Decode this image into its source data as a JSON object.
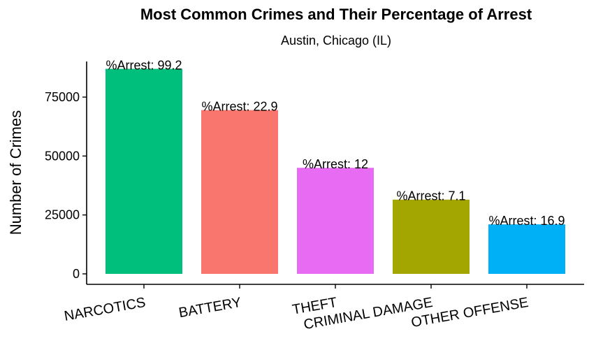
{
  "chart_data": {
    "type": "bar",
    "title": "Most Common Crimes and Their Percentage of Arrest",
    "subtitle": "Austin, Chicago (IL)",
    "xlabel": "",
    "ylabel": "Number of Crimes",
    "categories": [
      "NARCOTICS",
      "BATTERY",
      "THEFT",
      "CRIMINAL DAMAGE",
      "OTHER OFFENSE"
    ],
    "values": [
      87000,
      69500,
      45000,
      31500,
      21000
    ],
    "labels": [
      "%Arrest: 99.2",
      "%Arrest: 22.9",
      "%Arrest: 12",
      "%Arrest: 7.1",
      "%Arrest: 16.9"
    ],
    "colors": [
      "#00BF7D",
      "#F8766D",
      "#E76BF3",
      "#A3A500",
      "#00B0F6"
    ],
    "yticks": [
      0,
      25000,
      50000,
      75000
    ],
    "ylim": [
      0,
      90000
    ],
    "grid": false,
    "legend": "none"
  }
}
